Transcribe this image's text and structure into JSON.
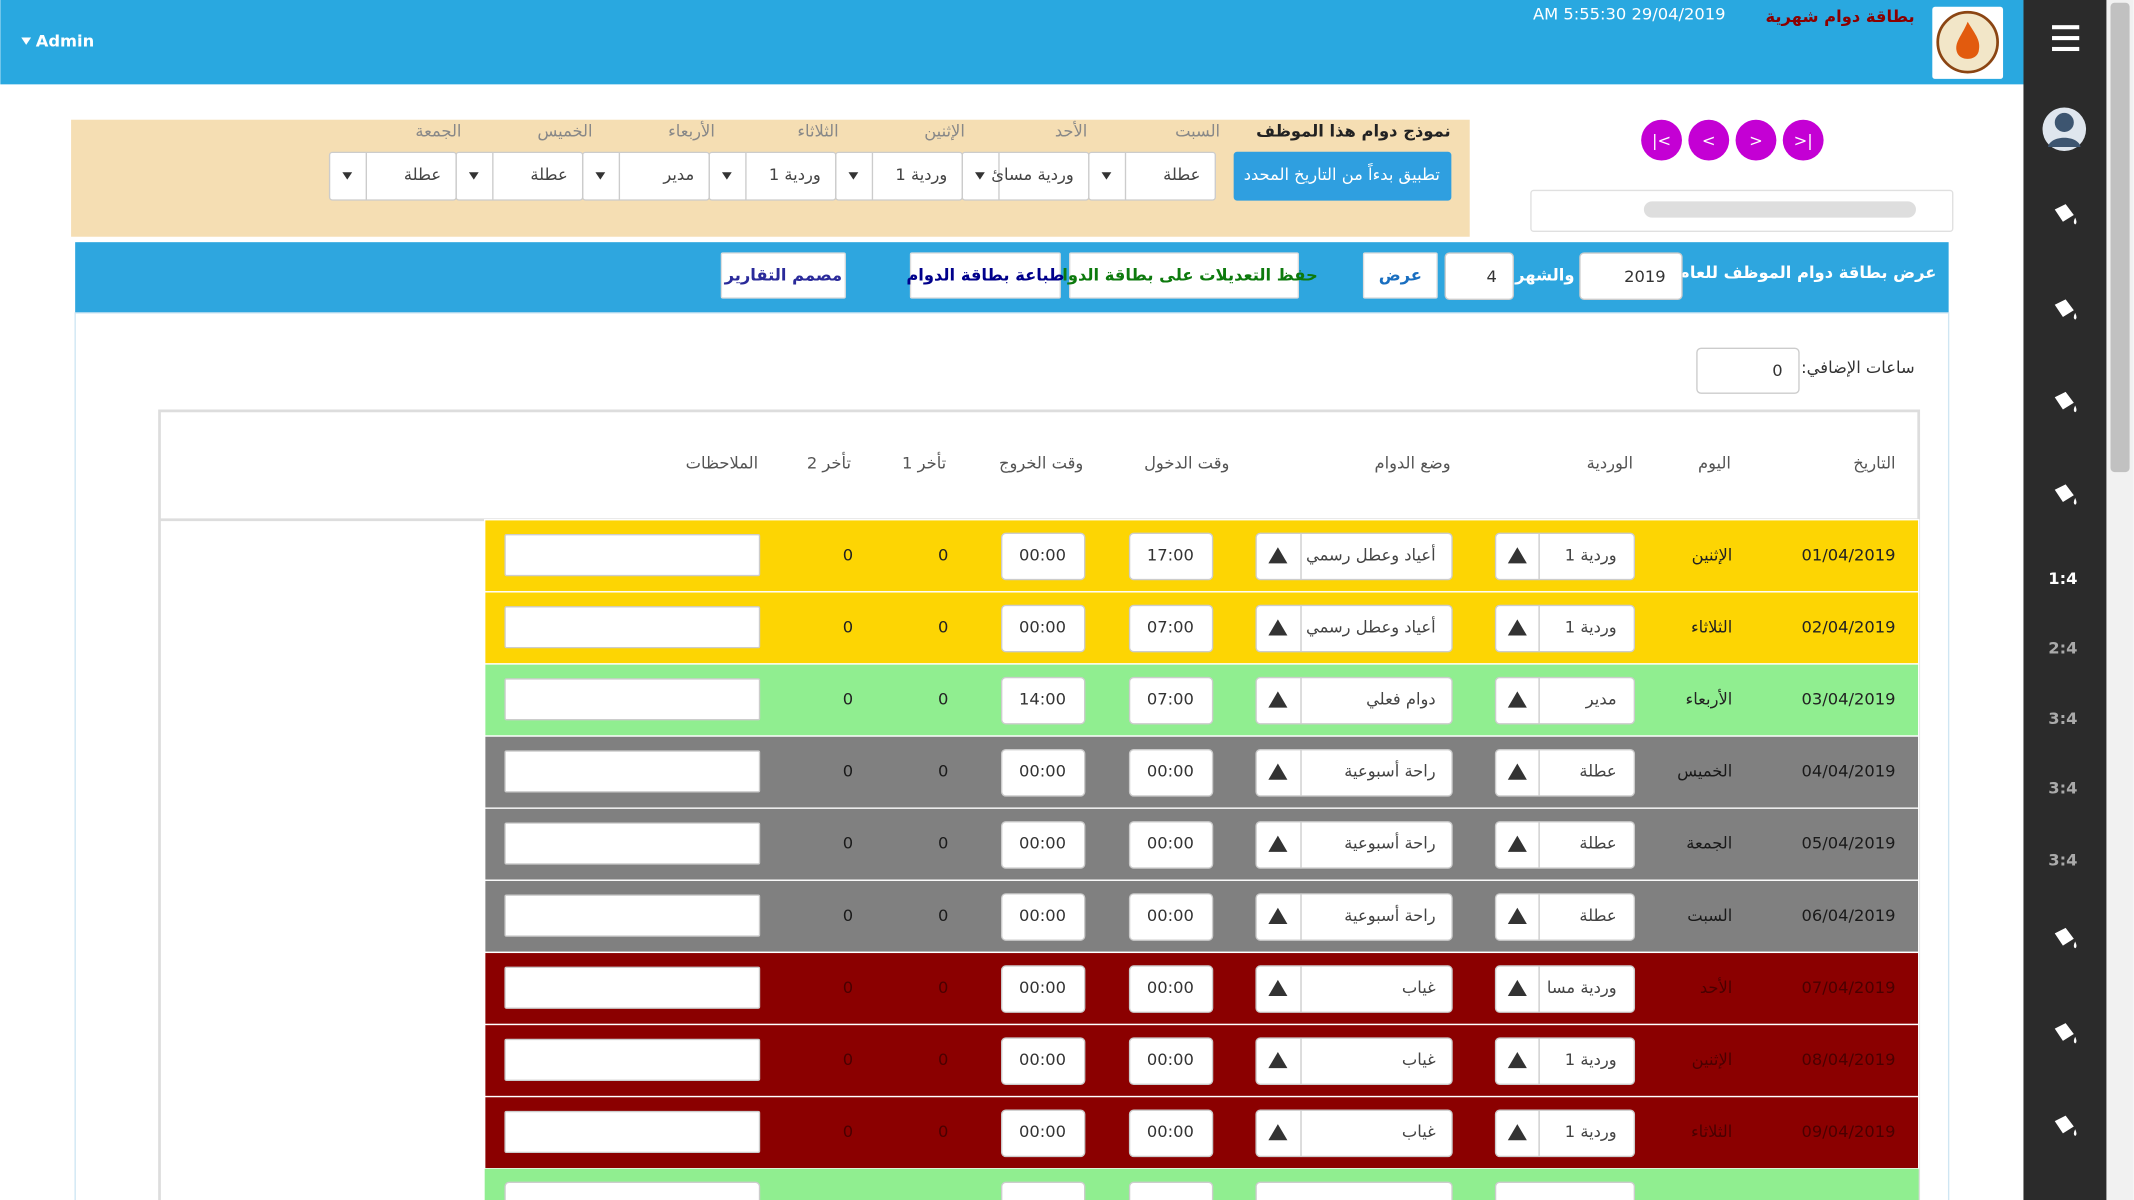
{
  "header": {
    "title": "بطاقة دوام شهرية",
    "datetime": "AM 5:55:30 29/04/2019",
    "user": "Admin"
  },
  "nav": [
    "|<",
    "<",
    ">",
    ">|"
  ],
  "template": {
    "title": "نموذج دوام هذا الموظف",
    "apply_button": "تطبيق بدءاً من التاريخ المحدد",
    "days": [
      {
        "day": "السبت",
        "value": "عطلة"
      },
      {
        "day": "الأحد",
        "value": "وردية مسائ"
      },
      {
        "day": "الإثنين",
        "value": "وردية 1"
      },
      {
        "day": "الثلاثاء",
        "value": "وردية 1"
      },
      {
        "day": "الأربعاء",
        "value": "مدير"
      },
      {
        "day": "الخميس",
        "value": "عطلة"
      },
      {
        "day": "الجمعة",
        "value": "عطلة"
      }
    ]
  },
  "toolbar": {
    "title": "عرض بطاقة دوام الموظف للعام",
    "year": "2019",
    "month_label": "والشهر",
    "month": "4",
    "show_button": "عرض",
    "save_button": "حفظ التعديلات على بطاقة الدوام",
    "print_button": "طباعة بطاقة الدوام",
    "reports_button": "مصمم التقارير"
  },
  "overtime": {
    "label": "ساعات الإضافي:",
    "value": "0"
  },
  "table": {
    "headers": [
      "التاريخ",
      "اليوم",
      "الوردية",
      "وضع الدوام",
      "وقت الدخول",
      "وقت الخروج",
      "تأخر 1",
      "تأخر 2",
      "الملاحظات"
    ],
    "rows": [
      {
        "date": "01/04/2019",
        "day": "الإثنين",
        "shift": "وردية 1",
        "status": "أعياد وعطل رسمي",
        "in": "17:00",
        "out": "00:00",
        "late1": "0",
        "late2": "0",
        "color": "#fdd503",
        "text_color": "#222222"
      },
      {
        "date": "02/04/2019",
        "day": "الثلاثاء",
        "shift": "وردية 1",
        "status": "أعياد وعطل رسمي",
        "in": "07:00",
        "out": "00:00",
        "late1": "0",
        "late2": "0",
        "color": "#fdd503",
        "text_color": "#222222"
      },
      {
        "date": "03/04/2019",
        "day": "الأربعاء",
        "shift": "مدير",
        "status": "دوام فعلي",
        "in": "07:00",
        "out": "14:00",
        "late1": "0",
        "late2": "0",
        "color": "#90ee90",
        "text_color": "#222222"
      },
      {
        "date": "04/04/2019",
        "day": "الخميس",
        "shift": "عطلة",
        "status": "راحة أسبوعية",
        "in": "00:00",
        "out": "00:00",
        "late1": "0",
        "late2": "0",
        "color": "#808080",
        "text_color": "#1a1a1a"
      },
      {
        "date": "05/04/2019",
        "day": "الجمعة",
        "shift": "عطلة",
        "status": "راحة أسبوعية",
        "in": "00:00",
        "out": "00:00",
        "late1": "0",
        "late2": "0",
        "color": "#808080",
        "text_color": "#1a1a1a"
      },
      {
        "date": "06/04/2019",
        "day": "السبت",
        "shift": "عطلة",
        "status": "راحة أسبوعية",
        "in": "00:00",
        "out": "00:00",
        "late1": "0",
        "late2": "0",
        "color": "#808080",
        "text_color": "#1a1a1a"
      },
      {
        "date": "07/04/2019",
        "day": "الأحد",
        "shift": "وردية مسا",
        "status": "غياب",
        "in": "00:00",
        "out": "00:00",
        "late1": "0",
        "late2": "0",
        "color": "#8b0000",
        "text_color": "#4a0000"
      },
      {
        "date": "08/04/2019",
        "day": "الإثنين",
        "shift": "وردية 1",
        "status": "غياب",
        "in": "00:00",
        "out": "00:00",
        "late1": "0",
        "late2": "0",
        "color": "#8b0000",
        "text_color": "#4a0000"
      },
      {
        "date": "09/04/2019",
        "day": "الثلاثاء",
        "shift": "وردية 1",
        "status": "غياب",
        "in": "00:00",
        "out": "00:00",
        "late1": "0",
        "late2": "0",
        "color": "#8b0000",
        "text_color": "#4a0000"
      }
    ]
  },
  "sidebar": {
    "pages": [
      "1:4",
      "2:4",
      "3:4",
      "3:4",
      "3:4"
    ]
  }
}
